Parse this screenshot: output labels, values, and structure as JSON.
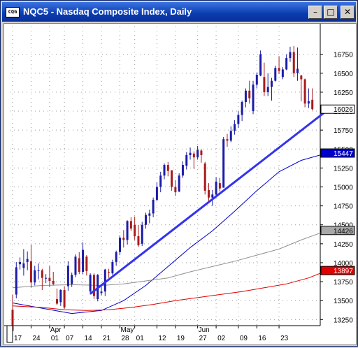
{
  "window": {
    "icon_text": "CQG",
    "title": "NQC5 - Nasdaq Composite Index, Daily",
    "buttons": [
      {
        "name": "minimize-button",
        "glyph": "–"
      },
      {
        "name": "maximize-button",
        "glyph": "□"
      },
      {
        "name": "close-button",
        "glyph": "✕"
      }
    ]
  },
  "chart_data": {
    "type": "candlestick",
    "symbol": "NQC5",
    "ylim": [
      13100,
      17000
    ],
    "y_ticks": [
      "16750",
      "16500",
      "16250",
      "16000",
      "15750",
      "15500",
      "15250",
      "15000",
      "14750",
      "14500",
      "14250",
      "14000",
      "13750",
      "13500",
      "13250"
    ],
    "x_ticks": [
      "17",
      "24",
      "01",
      "07",
      "14",
      "21",
      "28",
      "01",
      "12",
      "19",
      "27",
      "02",
      "09",
      "16",
      "23"
    ],
    "month_labels": [
      "Apr",
      "May",
      "Jun"
    ],
    "price_labels": [
      {
        "text": "16026",
        "value": 16026,
        "bg": "#ffffff",
        "color": "#000000"
      },
      {
        "text": "15447",
        "value": 15447,
        "bg": "#0000cc",
        "color": "#ffffff"
      },
      {
        "text": "14426",
        "value": 14426,
        "bg": "#a8a8a8",
        "color": "#000000"
      },
      {
        "text": "13897",
        "value": 13897,
        "bg": "#e00000",
        "color": "#ffffff"
      }
    ],
    "colors": {
      "up": "#1c1ca8",
      "down": "#a81c1c",
      "trendline": "#3333ee",
      "ma_short": "#0000cc",
      "ma_mid": "#909090",
      "ma_long": "#e00000"
    },
    "candles": [
      [
        13380,
        13580,
        13060,
        13100
      ],
      [
        13580,
        14010,
        13530,
        13940
      ],
      [
        13980,
        14070,
        13910,
        14010
      ],
      [
        13930,
        14180,
        13830,
        13990
      ],
      [
        14010,
        14150,
        13900,
        14050
      ],
      [
        14020,
        14240,
        13670,
        13740
      ],
      [
        13740,
        13960,
        13700,
        13900
      ],
      [
        13900,
        13990,
        13780,
        13900
      ],
      [
        13900,
        13920,
        13640,
        13800
      ],
      [
        13790,
        13850,
        13730,
        13800
      ],
      [
        13800,
        13960,
        13680,
        13760
      ],
      [
        13760,
        13880,
        13700,
        13720
      ],
      [
        13520,
        13660,
        13440,
        13460
      ],
      [
        13480,
        13650,
        13430,
        13640
      ],
      [
        13640,
        13690,
        13390,
        13410
      ],
      [
        13690,
        14020,
        13630,
        13960
      ],
      [
        13720,
        13870,
        13680,
        13840
      ],
      [
        13840,
        14110,
        13810,
        14080
      ],
      [
        14060,
        14140,
        13850,
        13880
      ],
      [
        13880,
        14270,
        13850,
        14170
      ],
      [
        14080,
        14100,
        13830,
        13890
      ],
      [
        13620,
        13860,
        13580,
        13840
      ],
      [
        13840,
        13860,
        13520,
        13560
      ],
      [
        13520,
        13850,
        13490,
        13840
      ],
      [
        13600,
        13680,
        13570,
        13620
      ],
      [
        13620,
        13920,
        13560,
        13910
      ],
      [
        13880,
        13920,
        13800,
        13870
      ],
      [
        13860,
        14040,
        13840,
        14010
      ],
      [
        14010,
        14160,
        13960,
        14140
      ],
      [
        14140,
        14360,
        14100,
        14330
      ],
      [
        14330,
        14430,
        14200,
        14300
      ],
      [
        14300,
        14560,
        14240,
        14550
      ],
      [
        14550,
        14600,
        14420,
        14450
      ],
      [
        14500,
        14610,
        14300,
        14350
      ],
      [
        14350,
        14500,
        14210,
        14230
      ],
      [
        14250,
        14540,
        14220,
        14500
      ],
      [
        14500,
        14660,
        14450,
        14630
      ],
      [
        14620,
        14700,
        14520,
        14650
      ],
      [
        14650,
        14860,
        14600,
        14830
      ],
      [
        14830,
        15060,
        14810,
        15000
      ],
      [
        15000,
        15200,
        14930,
        15150
      ],
      [
        15150,
        15310,
        15100,
        15290
      ],
      [
        15290,
        15330,
        15140,
        15210
      ],
      [
        15220,
        15220,
        14950,
        15000
      ],
      [
        15000,
        15090,
        14880,
        14930
      ],
      [
        14940,
        15180,
        14930,
        15150
      ],
      [
        15150,
        15340,
        15120,
        15290
      ],
      [
        15280,
        15460,
        15230,
        15420
      ],
      [
        15420,
        15520,
        15360,
        15450
      ],
      [
        15440,
        15470,
        15240,
        15390
      ],
      [
        15390,
        15540,
        15360,
        15490
      ],
      [
        15480,
        15500,
        15320,
        15420
      ],
      [
        15310,
        15330,
        14900,
        14950
      ],
      [
        14960,
        15050,
        14790,
        14860
      ],
      [
        14860,
        14960,
        14750,
        14900
      ],
      [
        14900,
        15130,
        14860,
        15070
      ],
      [
        15050,
        15120,
        14940,
        14980
      ],
      [
        14990,
        15660,
        14990,
        15630
      ],
      [
        15630,
        15700,
        15530,
        15610
      ],
      [
        15610,
        15800,
        15590,
        15740
      ],
      [
        15740,
        15880,
        15690,
        15830
      ],
      [
        15830,
        16000,
        15780,
        15950
      ],
      [
        15950,
        16140,
        15870,
        16120
      ],
      [
        16120,
        16300,
        16050,
        16270
      ],
      [
        16270,
        16400,
        16100,
        16170
      ],
      [
        16000,
        16400,
        15960,
        16350
      ],
      [
        16350,
        16510,
        16300,
        16480
      ],
      [
        16470,
        16800,
        16460,
        16750
      ],
      [
        16450,
        16640,
        16200,
        16250
      ],
      [
        16250,
        16500,
        16200,
        16320
      ],
      [
        16320,
        16440,
        16140,
        16400
      ],
      [
        16400,
        16600,
        16390,
        16570
      ],
      [
        16570,
        16720,
        16490,
        16530
      ],
      [
        16450,
        16580,
        16420,
        16550
      ],
      [
        16550,
        16750,
        16540,
        16700
      ],
      [
        16700,
        16850,
        16650,
        16780
      ],
      [
        16780,
        16860,
        16450,
        16500
      ],
      [
        16500,
        16840,
        16400,
        16560
      ],
      [
        16470,
        16480,
        16130,
        16420
      ],
      [
        16420,
        16430,
        16050,
        16100
      ],
      [
        16100,
        16300,
        16040,
        16130
      ],
      [
        16150,
        16300,
        16010,
        16026
      ]
    ],
    "trendline": [
      [
        21,
        13590
      ],
      [
        85,
        16010
      ]
    ],
    "moving_averages": [
      {
        "name": "ma_short",
        "points": [
          [
            0,
            13470
          ],
          [
            8,
            13400
          ],
          [
            16,
            13330
          ],
          [
            24,
            13370
          ],
          [
            30,
            13500
          ],
          [
            36,
            13700
          ],
          [
            42,
            13950
          ],
          [
            48,
            14200
          ],
          [
            54,
            14420
          ],
          [
            60,
            14680
          ],
          [
            66,
            14950
          ],
          [
            72,
            15200
          ],
          [
            78,
            15350
          ],
          [
            85,
            15447
          ]
        ]
      },
      {
        "name": "ma_mid",
        "points": [
          [
            0,
            13670
          ],
          [
            8,
            13700
          ],
          [
            16,
            13710
          ],
          [
            24,
            13700
          ],
          [
            30,
            13720
          ],
          [
            36,
            13760
          ],
          [
            42,
            13800
          ],
          [
            48,
            13880
          ],
          [
            54,
            13950
          ],
          [
            60,
            14020
          ],
          [
            66,
            14100
          ],
          [
            72,
            14180
          ],
          [
            78,
            14300
          ],
          [
            85,
            14426
          ]
        ]
      },
      {
        "name": "ma_long",
        "points": [
          [
            0,
            13430
          ],
          [
            8,
            13410
          ],
          [
            14,
            13380
          ],
          [
            20,
            13370
          ],
          [
            26,
            13380
          ],
          [
            32,
            13410
          ],
          [
            38,
            13450
          ],
          [
            44,
            13500
          ],
          [
            50,
            13540
          ],
          [
            56,
            13580
          ],
          [
            62,
            13620
          ],
          [
            68,
            13670
          ],
          [
            74,
            13720
          ],
          [
            80,
            13800
          ],
          [
            85,
            13897
          ]
        ]
      }
    ]
  }
}
